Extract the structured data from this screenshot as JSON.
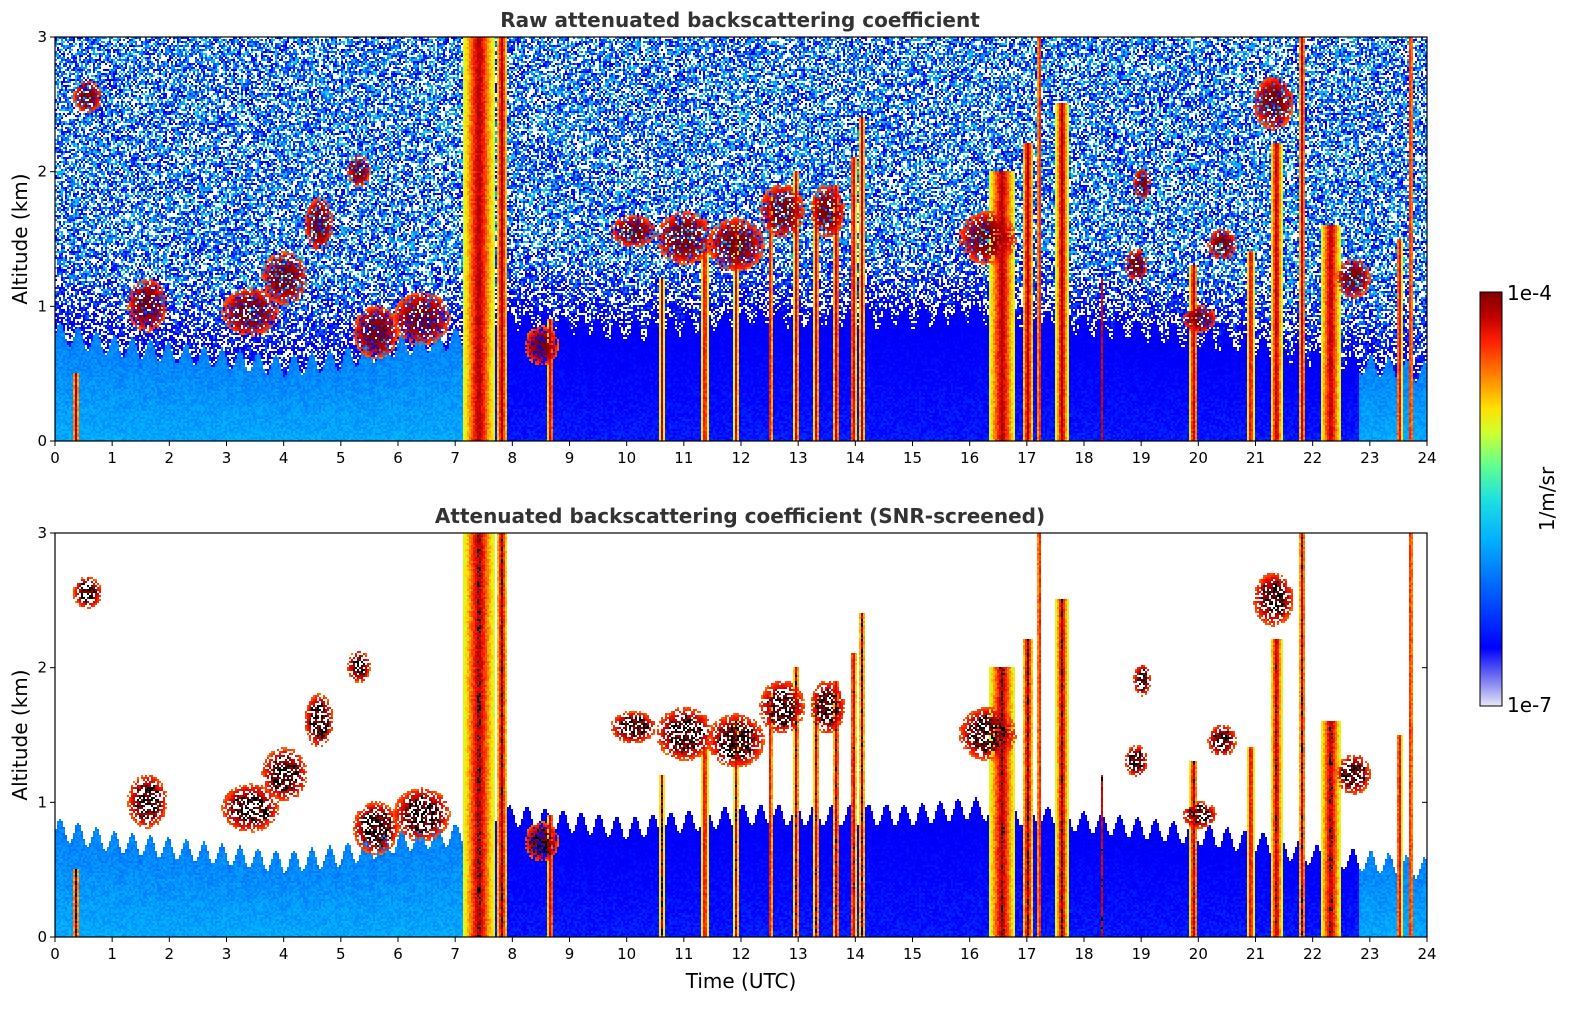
{
  "chart_data": [
    {
      "type": "heatmap",
      "title": "Raw attenuated backscattering coefficient",
      "xlabel": "",
      "ylabel": "Altitude (km)",
      "xlim": [
        0,
        24
      ],
      "ylim": [
        0,
        3
      ],
      "xticks": [
        "0",
        "1",
        "2",
        "3",
        "4",
        "5",
        "6",
        "7",
        "8",
        "9",
        "10",
        "11",
        "12",
        "13",
        "14",
        "15",
        "16",
        "17",
        "18",
        "19",
        "20",
        "21",
        "22",
        "23",
        "24"
      ],
      "yticks": [
        "0",
        "1",
        "2",
        "3"
      ],
      "screened": false
    },
    {
      "type": "heatmap",
      "title": "Attenuated backscattering coefficient (SNR-screened)",
      "xlabel": "Time (UTC)",
      "ylabel": "Altitude (km)",
      "xlim": [
        0,
        24
      ],
      "ylim": [
        0,
        3
      ],
      "xticks": [
        "0",
        "1",
        "2",
        "3",
        "4",
        "5",
        "6",
        "7",
        "8",
        "9",
        "10",
        "11",
        "12",
        "13",
        "14",
        "15",
        "16",
        "17",
        "18",
        "19",
        "20",
        "21",
        "22",
        "23",
        "24"
      ],
      "yticks": [
        "0",
        "1",
        "2",
        "3"
      ],
      "screened": true
    }
  ],
  "colorbar": {
    "max_label": "1e-4",
    "min_label": "1e-7",
    "unit_label": "1/m/sr",
    "scale": "log",
    "colors": [
      "#e8e8f8",
      "#0000e0",
      "#0000ff",
      "#0060ff",
      "#00b0ff",
      "#20e0e0",
      "#60ff90",
      "#d0ff30",
      "#ffe000",
      "#ff8000",
      "#ff2000",
      "#c00000",
      "#800000"
    ]
  },
  "features": {
    "boundary_layer_top_km": [
      [
        0,
        0.8
      ],
      [
        1,
        0.7
      ],
      [
        2,
        0.65
      ],
      [
        3,
        0.6
      ],
      [
        4,
        0.55
      ],
      [
        5,
        0.6
      ],
      [
        6,
        0.7
      ],
      [
        7,
        0.75
      ],
      [
        8,
        0.9
      ],
      [
        9,
        0.85
      ],
      [
        10,
        0.8
      ],
      [
        11,
        0.85
      ],
      [
        12,
        0.9
      ],
      [
        13,
        0.9
      ],
      [
        14,
        0.9
      ],
      [
        15,
        0.9
      ],
      [
        16,
        0.95
      ],
      [
        17,
        0.9
      ],
      [
        18,
        0.85
      ],
      [
        19,
        0.8
      ],
      [
        20,
        0.75
      ],
      [
        21,
        0.7
      ],
      [
        22,
        0.6
      ],
      [
        23,
        0.55
      ],
      [
        24,
        0.5
      ]
    ],
    "rain_shafts": [
      {
        "t": 0.35,
        "top": 0.5,
        "w": 0.12
      },
      {
        "t": 7.4,
        "top": 3.0,
        "w": 0.55
      },
      {
        "t": 7.8,
        "top": 3.0,
        "w": 0.2
      },
      {
        "t": 8.65,
        "top": 0.9,
        "w": 0.12
      },
      {
        "t": 10.6,
        "top": 1.2,
        "w": 0.08
      },
      {
        "t": 11.35,
        "top": 1.4,
        "w": 0.12
      },
      {
        "t": 11.9,
        "top": 1.6,
        "w": 0.08
      },
      {
        "t": 12.5,
        "top": 1.8,
        "w": 0.08
      },
      {
        "t": 12.95,
        "top": 2.0,
        "w": 0.1
      },
      {
        "t": 13.3,
        "top": 1.8,
        "w": 0.1
      },
      {
        "t": 13.65,
        "top": 1.9,
        "w": 0.12
      },
      {
        "t": 13.95,
        "top": 2.1,
        "w": 0.12
      },
      {
        "t": 14.1,
        "top": 2.4,
        "w": 0.1
      },
      {
        "t": 16.55,
        "top": 2.0,
        "w": 0.45
      },
      {
        "t": 17.0,
        "top": 2.2,
        "w": 0.2
      },
      {
        "t": 17.2,
        "top": 3.0,
        "w": 0.08
      },
      {
        "t": 17.6,
        "top": 2.5,
        "w": 0.22
      },
      {
        "t": 18.3,
        "top": 1.2,
        "w": 0.06
      },
      {
        "t": 19.9,
        "top": 1.3,
        "w": 0.15
      },
      {
        "t": 20.9,
        "top": 1.4,
        "w": 0.12
      },
      {
        "t": 21.35,
        "top": 2.2,
        "w": 0.2
      },
      {
        "t": 21.8,
        "top": 3.0,
        "w": 0.12
      },
      {
        "t": 22.3,
        "top": 1.6,
        "w": 0.35
      },
      {
        "t": 23.5,
        "top": 1.5,
        "w": 0.1
      },
      {
        "t": 23.7,
        "top": 3.0,
        "w": 0.08
      }
    ],
    "cloud_patches": [
      {
        "t": 0.55,
        "h": 2.55,
        "dt": 0.25,
        "dh": 0.12
      },
      {
        "t": 4.6,
        "h": 1.6,
        "dt": 0.25,
        "dh": 0.2
      },
      {
        "t": 5.3,
        "h": 2.0,
        "dt": 0.2,
        "dh": 0.12
      },
      {
        "t": 1.6,
        "h": 1.0,
        "dt": 0.35,
        "dh": 0.2
      },
      {
        "t": 3.4,
        "h": 0.95,
        "dt": 0.5,
        "dh": 0.18
      },
      {
        "t": 4.0,
        "h": 1.2,
        "dt": 0.4,
        "dh": 0.2
      },
      {
        "t": 5.6,
        "h": 0.8,
        "dt": 0.4,
        "dh": 0.2
      },
      {
        "t": 6.4,
        "h": 0.9,
        "dt": 0.5,
        "dh": 0.2
      },
      {
        "t": 8.5,
        "h": 0.7,
        "dt": 0.3,
        "dh": 0.15
      },
      {
        "t": 10.1,
        "h": 1.55,
        "dt": 0.4,
        "dh": 0.12
      },
      {
        "t": 11.0,
        "h": 1.5,
        "dt": 0.5,
        "dh": 0.2
      },
      {
        "t": 11.9,
        "h": 1.45,
        "dt": 0.5,
        "dh": 0.2
      },
      {
        "t": 12.7,
        "h": 1.7,
        "dt": 0.4,
        "dh": 0.2
      },
      {
        "t": 13.5,
        "h": 1.7,
        "dt": 0.3,
        "dh": 0.2
      },
      {
        "t": 16.3,
        "h": 1.5,
        "dt": 0.5,
        "dh": 0.2
      },
      {
        "t": 19.0,
        "h": 1.9,
        "dt": 0.15,
        "dh": 0.12
      },
      {
        "t": 18.9,
        "h": 1.3,
        "dt": 0.2,
        "dh": 0.12
      },
      {
        "t": 20.4,
        "h": 1.45,
        "dt": 0.25,
        "dh": 0.12
      },
      {
        "t": 21.3,
        "h": 2.5,
        "dt": 0.35,
        "dh": 0.2
      },
      {
        "t": 22.7,
        "h": 1.2,
        "dt": 0.3,
        "dh": 0.15
      },
      {
        "t": 20.0,
        "h": 0.9,
        "dt": 0.3,
        "dh": 0.1
      }
    ]
  }
}
